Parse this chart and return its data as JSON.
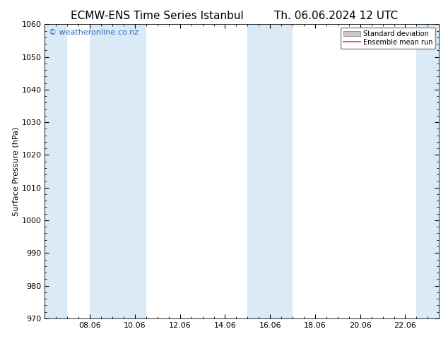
{
  "title_left": "ECMW-ENS Time Series Istanbul",
  "title_right": "Th. 06.06.2024 12 UTC",
  "ylabel": "Surface Pressure (hPa)",
  "ylim": [
    970,
    1060
  ],
  "yticks": [
    970,
    980,
    990,
    1000,
    1010,
    1020,
    1030,
    1040,
    1050,
    1060
  ],
  "xtick_labels": [
    "08.06",
    "10.06",
    "12.06",
    "14.06",
    "16.06",
    "18.06",
    "20.06",
    "22.06"
  ],
  "xtick_positions": [
    8,
    10,
    12,
    14,
    16,
    18,
    20,
    22
  ],
  "xlim": [
    6.0,
    23.5
  ],
  "shaded_bands": [
    {
      "x_start": 6.0,
      "x_end": 7.0
    },
    {
      "x_start": 8.0,
      "x_end": 10.5
    },
    {
      "x_start": 15.0,
      "x_end": 17.0
    },
    {
      "x_start": 22.5,
      "x_end": 23.5
    }
  ],
  "shade_color": "#daeaf7",
  "background_color": "#ffffff",
  "watermark_text": "© weatheronline.co.nz",
  "watermark_color": "#3366bb",
  "watermark_fontsize": 8,
  "legend_std_dev_color": "#c8c8c8",
  "legend_mean_run_color": "#ff3333",
  "title_fontsize": 11,
  "ylabel_fontsize": 8,
  "tick_fontsize": 8
}
